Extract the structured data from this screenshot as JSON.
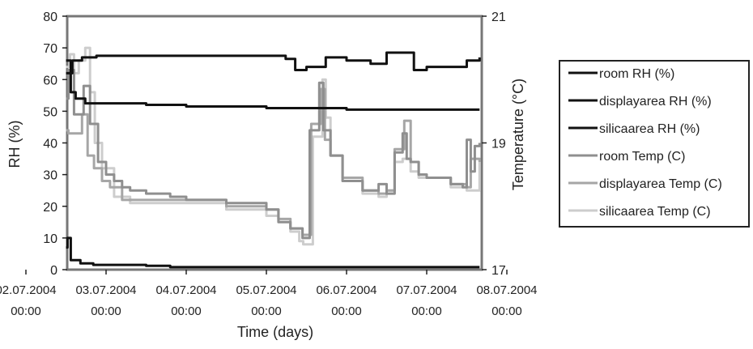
{
  "chart_data": {
    "type": "line",
    "xlabel": "Time (days)",
    "ylabel_left": "RH (%)",
    "ylabel_right": "Temperature (°C)",
    "x_ticks": [
      {
        "date": "02.07.2004",
        "time": "00:00",
        "day": 0
      },
      {
        "date": "03.07.2004",
        "time": "00:00",
        "day": 1
      },
      {
        "date": "04.07.2004",
        "time": "00:00",
        "day": 2
      },
      {
        "date": "05.07.2004",
        "time": "00:00",
        "day": 3
      },
      {
        "date": "06.07.2004",
        "time": "00:00",
        "day": 4
      },
      {
        "date": "07.07.2004",
        "time": "00:00",
        "day": 5
      },
      {
        "date": "08.07.2004",
        "time": "00:00",
        "day": 6
      }
    ],
    "xlim": [
      "02.07.2004 00:00",
      "08.07.2004 00:00"
    ],
    "ylim_left": [
      0,
      80
    ],
    "y_ticks_left": [
      "0",
      "10",
      "20",
      "30",
      "40",
      "50",
      "60",
      "70",
      "80"
    ],
    "ylim_right": [
      17,
      21
    ],
    "y_ticks_right": [
      "17",
      "19",
      "21"
    ],
    "legend_position": "right",
    "series": [
      {
        "name": "room RH (%)",
        "axis": "left",
        "color": "#111111",
        "x": [
          "02.07.2004 12:00",
          "02.07.2004 12:28",
          "02.07.2004 13:26",
          "02.07.2004 16:19",
          "02.07.2004 20:10",
          "03.07.2004 02:24",
          "03.07.2004 12:00",
          "03.07.2004 19:12",
          "04.07.2004 12:00",
          "05.07.2004 00:00",
          "05.07.2004 12:00",
          "06.07.2004 00:00",
          "06.07.2004 12:00",
          "07.07.2004 00:00",
          "07.07.2004 12:00",
          "07.07.2004 15:50"
        ],
        "y": [
          7,
          10,
          3,
          2,
          1.5,
          1.5,
          1.2,
          0.8,
          0.8,
          0.8,
          0.8,
          0.8,
          0.8,
          0.8,
          0.8,
          0.8
        ]
      },
      {
        "name": "displayarea RH (%)",
        "axis": "left",
        "color": "#111111",
        "x": [
          "02.07.2004 12:00",
          "02.07.2004 13:55",
          "02.07.2004 16:48",
          "02.07.2004 21:07",
          "03.07.2004 00:00",
          "03.07.2004 12:00",
          "04.07.2004 00:00",
          "04.07.2004 12:00",
          "05.07.2004 00:00",
          "05.07.2004 05:46",
          "05.07.2004 08:38",
          "05.07.2004 12:00",
          "05.07.2004 17:46",
          "06.07.2004 00:00",
          "06.07.2004 07:12",
          "06.07.2004 12:00",
          "06.07.2004 20:10",
          "07.07.2004 00:00",
          "07.07.2004 12:00",
          "07.07.2004 15:50"
        ],
        "y": [
          62,
          66,
          67,
          67.5,
          67.5,
          67.5,
          67.5,
          67.5,
          67.5,
          66.5,
          63,
          64,
          67,
          66,
          65,
          68.5,
          63,
          64,
          66,
          67
        ]
      },
      {
        "name": "silicaarea RH (%)",
        "axis": "left",
        "color": "#111111",
        "x": [
          "02.07.2004 12:00",
          "02.07.2004 13:26",
          "02.07.2004 14:53",
          "02.07.2004 17:46",
          "02.07.2004 21:07",
          "03.07.2004 00:00",
          "03.07.2004 12:00",
          "04.07.2004 00:00",
          "04.07.2004 12:00",
          "05.07.2004 00:00",
          "05.07.2004 12:00",
          "06.07.2004 00:00",
          "06.07.2004 12:00",
          "07.07.2004 00:00",
          "07.07.2004 12:00",
          "07.07.2004 15:50"
        ],
        "y": [
          66,
          56,
          54,
          52.5,
          52.5,
          52.5,
          52,
          51.5,
          51.5,
          51,
          51,
          50.5,
          50.5,
          50.5,
          50.5,
          50.5
        ]
      },
      {
        "name": "room Temp (C)",
        "axis": "right",
        "color": "#8f8f8f",
        "x": [
          "02.07.2004 12:00",
          "02.07.2004 12:43",
          "02.07.2004 14:24",
          "02.07.2004 17:17",
          "02.07.2004 19:12",
          "02.07.2004 21:36",
          "03.07.2004 00:00",
          "03.07.2004 02:24",
          "03.07.2004 04:48",
          "03.07.2004 07:12",
          "03.07.2004 12:00",
          "03.07.2004 19:12",
          "04.07.2004 00:00",
          "04.07.2004 12:00",
          "05.07.2004 00:00",
          "05.07.2004 03:36",
          "05.07.2004 07:12",
          "05.07.2004 10:48",
          "05.07.2004 12:58",
          "05.07.2004 15:50",
          "05.07.2004 17:02",
          "05.07.2004 19:12",
          "05.07.2004 22:48",
          "06.07.2004 04:48",
          "06.07.2004 09:36",
          "06.07.2004 12:00",
          "06.07.2004 14:24",
          "06.07.2004 16:48",
          "06.07.2004 18:00",
          "06.07.2004 19:12",
          "06.07.2004 21:36",
          "07.07.2004 00:00",
          "07.07.2004 07:12",
          "07.07.2004 10:48",
          "07.07.2004 12:00",
          "07.07.2004 13:12",
          "07.07.2004 14:24",
          "07.07.2004 15:50"
        ],
        "y": [
          19.7,
          20.15,
          19.45,
          19.9,
          19.3,
          18.7,
          18.5,
          18.4,
          18.3,
          18.25,
          18.2,
          18.15,
          18.1,
          18.05,
          17.95,
          17.75,
          17.65,
          17.5,
          19.2,
          19.95,
          19.2,
          18.8,
          18.4,
          18.25,
          18.35,
          18.2,
          18.85,
          19.15,
          18.75,
          18.7,
          18.5,
          18.45,
          18.35,
          18.3,
          19.05,
          18.55,
          18.95,
          19.0
        ]
      },
      {
        "name": "displayarea Temp (C)",
        "axis": "right",
        "color": "#a6a6a6",
        "x": [
          "02.07.2004 12:00",
          "02.07.2004 12:43",
          "02.07.2004 14:24",
          "02.07.2004 16:48",
          "02.07.2004 18:29",
          "02.07.2004 20:24",
          "02.07.2004 22:48",
          "03.07.2004 01:12",
          "03.07.2004 04:48",
          "03.07.2004 12:00",
          "04.07.2004 00:00",
          "04.07.2004 12:00",
          "05.07.2004 00:00",
          "05.07.2004 03:36",
          "05.07.2004 07:12",
          "05.07.2004 10:48",
          "05.07.2004 13:26",
          "05.07.2004 16:19",
          "05.07.2004 17:31",
          "05.07.2004 19:12",
          "05.07.2004 22:48",
          "06.07.2004 04:48",
          "06.07.2004 09:36",
          "06.07.2004 12:00",
          "06.07.2004 14:24",
          "06.07.2004 17:17",
          "06.07.2004 19:12",
          "06.07.2004 21:36",
          "07.07.2004 00:00",
          "07.07.2004 07:12",
          "07.07.2004 12:00",
          "07.07.2004 13:12",
          "07.07.2004 15:50"
        ],
        "y": [
          19.2,
          19.15,
          19.15,
          19.45,
          18.8,
          18.6,
          18.4,
          18.3,
          18.1,
          18.1,
          18.1,
          18.0,
          17.95,
          17.8,
          17.65,
          17.55,
          19.3,
          19.85,
          19.05,
          18.8,
          18.45,
          18.25,
          18.2,
          18.25,
          18.9,
          19.35,
          18.7,
          18.5,
          18.45,
          18.35,
          18.3,
          18.75,
          18.7
        ]
      },
      {
        "name": "silicaarea Temp (C)",
        "axis": "right",
        "color": "#cdcdcd",
        "x": [
          "02.07.2004 12:00",
          "02.07.2004 13:12",
          "02.07.2004 14:24",
          "02.07.2004 15:50",
          "02.07.2004 17:46",
          "02.07.2004 19:12",
          "02.07.2004 20:38",
          "02.07.2004 22:48",
          "03.07.2004 02:24",
          "03.07.2004 07:12",
          "03.07.2004 12:00",
          "04.07.2004 00:00",
          "04.07.2004 12:00",
          "05.07.2004 00:00",
          "05.07.2004 03:36",
          "05.07.2004 07:12",
          "05.07.2004 09:50",
          "05.07.2004 11:02",
          "05.07.2004 13:55",
          "05.07.2004 16:48",
          "05.07.2004 17:46",
          "05.07.2004 19:12",
          "05.07.2004 22:48",
          "06.07.2004 04:48",
          "06.07.2004 09:36",
          "06.07.2004 12:00",
          "06.07.2004 14:24",
          "06.07.2004 16:48",
          "06.07.2004 19:12",
          "06.07.2004 21:36",
          "07.07.2004 00:00",
          "07.07.2004 07:12",
          "07.07.2004 12:00",
          "07.07.2004 15:50"
        ],
        "y": [
          20.2,
          20.4,
          20.1,
          20.3,
          20.5,
          19.8,
          19.0,
          18.6,
          18.15,
          18.05,
          18.05,
          18.05,
          17.95,
          17.85,
          17.75,
          17.6,
          17.45,
          17.4,
          19.1,
          20.0,
          19.4,
          18.8,
          18.4,
          18.2,
          18.15,
          18.25,
          18.7,
          18.75,
          18.55,
          18.45,
          18.45,
          18.3,
          18.25,
          18.7
        ]
      }
    ]
  }
}
